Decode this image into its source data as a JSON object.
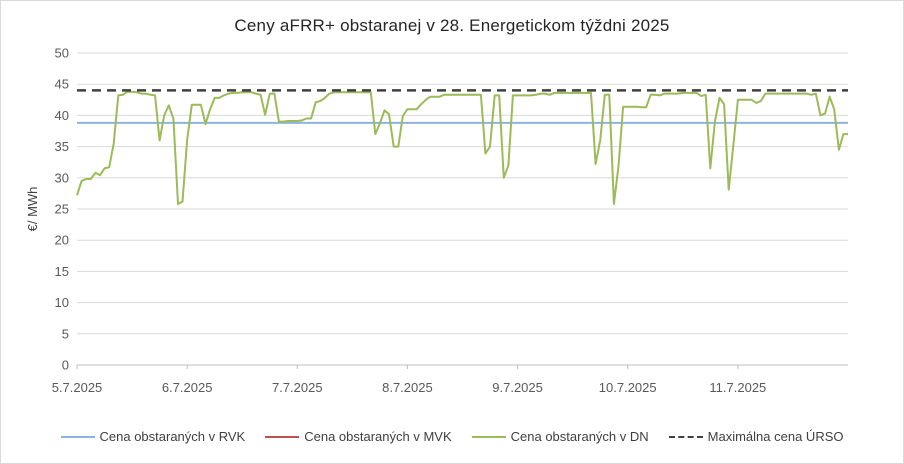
{
  "chart_data": {
    "type": "line",
    "title": "Ceny aFRR+ obstaranej v 28. Energetickom týždni 2025",
    "ylabel": "€/ MWh",
    "xlabel": "",
    "ylim": [
      0,
      50
    ],
    "yticks": [
      "0",
      "5",
      "10",
      "15",
      "20",
      "25",
      "30",
      "35",
      "40",
      "45",
      "50"
    ],
    "x_tick_labels": [
      "5.7.2025",
      "6.7.2025",
      "7.7.2025",
      "8.7.2025",
      "9.7.2025",
      "10.7.2025",
      "11.7.2025"
    ],
    "x_range_days": [
      0,
      7
    ],
    "grid": "horizontal",
    "legend_position": "bottom",
    "series": [
      {
        "name": "Cena obstaraných v RVK",
        "color": "#8db3e2",
        "style": "solid",
        "x": [
          0,
          7
        ],
        "y": [
          38.8,
          38.8
        ]
      },
      {
        "name": "Cena obstaraných v MVK",
        "color": "#c0504d",
        "style": "solid",
        "x": [],
        "y": []
      },
      {
        "name": "Cena obstaraných v DN",
        "color": "#9bbb59",
        "style": "solid",
        "x": [
          0,
          0.042,
          0.083,
          0.125,
          0.167,
          0.208,
          0.25,
          0.292,
          0.333,
          0.375,
          0.417,
          0.458,
          0.5,
          0.542,
          0.583,
          0.625,
          0.667,
          0.708,
          0.75,
          0.792,
          0.833,
          0.875,
          0.917,
          0.958,
          1.0,
          1.042,
          1.083,
          1.125,
          1.167,
          1.208,
          1.25,
          1.292,
          1.333,
          1.375,
          1.417,
          1.458,
          1.5,
          1.542,
          1.583,
          1.625,
          1.667,
          1.708,
          1.75,
          1.792,
          1.833,
          1.875,
          1.917,
          1.958,
          2.0,
          2.042,
          2.083,
          2.125,
          2.167,
          2.208,
          2.25,
          2.292,
          2.333,
          2.375,
          2.417,
          2.458,
          2.5,
          2.542,
          2.583,
          2.625,
          2.667,
          2.708,
          2.75,
          2.792,
          2.833,
          2.875,
          2.917,
          2.958,
          3.0,
          3.042,
          3.083,
          3.125,
          3.167,
          3.208,
          3.25,
          3.292,
          3.333,
          3.375,
          3.417,
          3.458,
          3.5,
          3.542,
          3.583,
          3.625,
          3.667,
          3.708,
          3.75,
          3.792,
          3.833,
          3.875,
          3.917,
          3.958,
          4.0,
          4.042,
          4.083,
          4.125,
          4.167,
          4.208,
          4.25,
          4.292,
          4.333,
          4.375,
          4.417,
          4.458,
          4.5,
          4.542,
          4.583,
          4.625,
          4.667,
          4.708,
          4.75,
          4.792,
          4.833,
          4.875,
          4.917,
          4.958,
          5.0,
          5.042,
          5.083,
          5.125,
          5.167,
          5.208,
          5.25,
          5.292,
          5.333,
          5.375,
          5.417,
          5.458,
          5.5,
          5.542,
          5.583,
          5.625,
          5.667,
          5.708,
          5.75,
          5.792,
          5.833,
          5.875,
          5.917,
          5.958,
          6.0,
          6.042,
          6.083,
          6.125,
          6.167,
          6.208,
          6.25,
          6.292,
          6.333,
          6.375,
          6.417,
          6.458,
          6.5,
          6.542,
          6.583,
          6.625,
          6.667,
          6.708,
          6.75,
          6.792,
          6.833,
          6.875,
          6.917,
          6.958,
          7.0
        ],
        "y": [
          27.2,
          29.5,
          29.8,
          29.8,
          30.8,
          30.4,
          31.5,
          31.7,
          35.5,
          43.2,
          43.3,
          43.8,
          43.8,
          43.7,
          43.5,
          43.5,
          43.3,
          43.2,
          36.0,
          40.0,
          41.6,
          39.5,
          25.8,
          26.2,
          36.0,
          41.7,
          41.7,
          41.7,
          38.6,
          41.0,
          42.8,
          42.8,
          43.2,
          43.5,
          43.6,
          43.6,
          43.7,
          43.7,
          43.7,
          43.5,
          43.3,
          40.1,
          43.5,
          43.5,
          39.0,
          39.0,
          39.1,
          39.1,
          39.1,
          39.2,
          39.5,
          39.5,
          42.1,
          42.3,
          42.8,
          43.5,
          43.7,
          43.7,
          43.7,
          43.7,
          43.7,
          43.7,
          43.7,
          43.7,
          43.7,
          37.0,
          38.7,
          40.8,
          40.2,
          35.0,
          35.0,
          39.9,
          41.0,
          41.0,
          41.0,
          41.8,
          42.5,
          43.0,
          43.0,
          43.0,
          43.3,
          43.3,
          43.3,
          43.3,
          43.3,
          43.3,
          43.3,
          43.3,
          43.3,
          33.9,
          35.0,
          43.2,
          43.2,
          30.0,
          32.0,
          43.2,
          43.2,
          43.2,
          43.2,
          43.2,
          43.3,
          43.5,
          43.5,
          43.3,
          43.6,
          43.6,
          43.6,
          43.6,
          43.6,
          43.6,
          43.6,
          43.6,
          43.6,
          32.2,
          36.0,
          43.3,
          43.3,
          25.8,
          32.0,
          41.4,
          41.4,
          41.4,
          41.4,
          41.3,
          41.3,
          43.3,
          43.3,
          43.2,
          43.5,
          43.5,
          43.5,
          43.5,
          43.6,
          43.6,
          43.6,
          43.6,
          43.1,
          43.3,
          31.5,
          39.0,
          42.8,
          41.8,
          28.1,
          35.0,
          42.5,
          42.5,
          42.5,
          42.5,
          42.0,
          42.3,
          43.5,
          43.5,
          43.5,
          43.5,
          43.5,
          43.5,
          43.5,
          43.5,
          43.5,
          43.5,
          43.3,
          43.5,
          40.0,
          40.3,
          43.0,
          41.0,
          34.5,
          37.0,
          37.0
        ]
      },
      {
        "name": "Maximálna cena ÚRSO",
        "color": "#404040",
        "style": "dashed",
        "x": [
          0,
          7
        ],
        "y": [
          44,
          44
        ]
      }
    ]
  }
}
